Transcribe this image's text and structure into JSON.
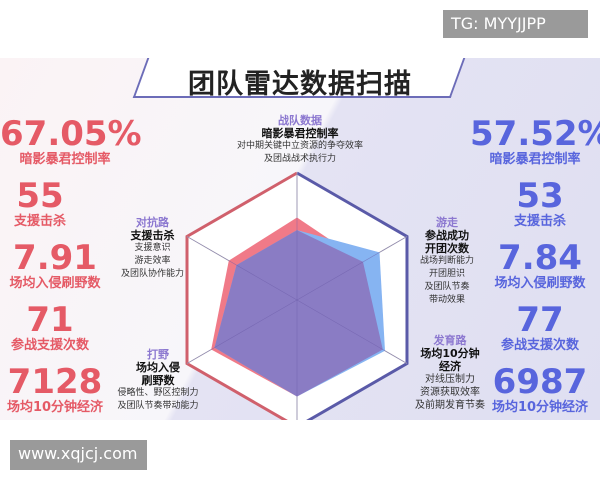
{
  "watermark_top": "TG: MYYJJPP",
  "watermark_bottom": "www.xqjcj.com",
  "title": "团队雷达数据扫描",
  "left_stats": [
    {
      "value": "67.05%",
      "label": "暗影暴君控制率"
    },
    {
      "value": "55",
      "label": "支援击杀"
    },
    {
      "value": "7.91",
      "label": "场均入侵刷野数"
    },
    {
      "value": "71",
      "label": "参战支援次数"
    },
    {
      "value": "7128",
      "label": "场均10分钟经济"
    }
  ],
  "right_stats": [
    {
      "value": "57.52%",
      "label": "暗影暴君控制率"
    },
    {
      "value": "53",
      "label": "支援击杀"
    },
    {
      "value": "7.84",
      "label": "场均入侵刷野数"
    },
    {
      "value": "77",
      "label": "参战支援次数"
    },
    {
      "value": "6987",
      "label": "场均10分钟经济"
    }
  ],
  "axes": {
    "top": {
      "heading": "战队数据",
      "metric": "暗影暴君控制率",
      "desc": [
        "对中期关键中立资源的争夺效率",
        "及团战战术执行力"
      ]
    },
    "upper_left": {
      "heading": "对抗路",
      "metric": "支援击杀",
      "desc": [
        "支援意识",
        "游走效率",
        "及团队协作能力"
      ]
    },
    "upper_right": {
      "heading": "游走",
      "metric": "参战成功",
      "metric2": "开团次数",
      "desc": [
        "战场判断能力",
        "开团胆识",
        "及团队节奏",
        "带动效果"
      ]
    },
    "lower_left": {
      "heading": "打野",
      "metric": "场均入侵",
      "metric2": "刷野数",
      "desc": [
        "侵略性、野区控制力",
        "及团队节奏带动能力"
      ]
    },
    "lower_right": {
      "heading": "发育路",
      "metric": "场均10分钟",
      "metric2": "经济",
      "desc": [
        "对线压制力",
        "资源获取效率",
        "及前期发育节奏"
      ]
    }
  },
  "chart_data": {
    "type": "radar",
    "axis_order": [
      "top",
      "upper_right",
      "lower_right",
      "bottom",
      "lower_left",
      "upper_left"
    ],
    "series": [
      {
        "values": [
          0.65,
          0.6,
          0.78,
          0.76,
          0.78,
          0.62
        ],
        "color": "#f07a88"
      },
      {
        "values": [
          0.55,
          0.75,
          0.8,
          0.76,
          0.75,
          0.55
        ],
        "color": "#86b4f2"
      }
    ],
    "overlap_color": "#8a7cc4"
  }
}
